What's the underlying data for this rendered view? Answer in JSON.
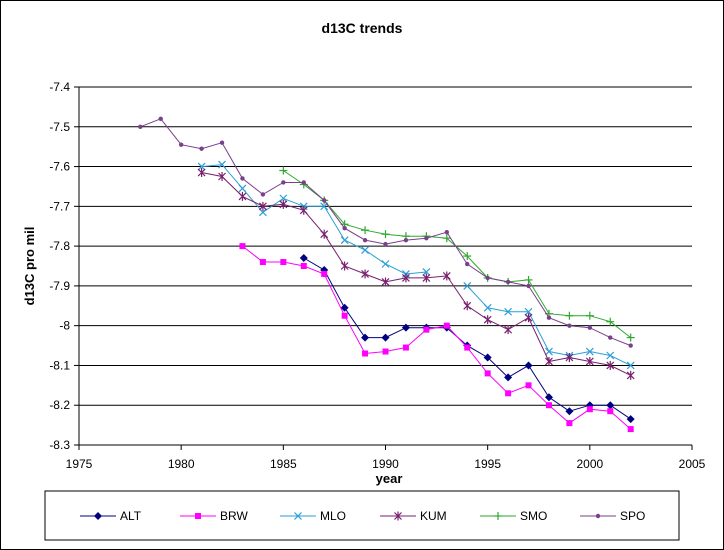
{
  "chart_data": {
    "type": "line",
    "title": "d13C trends",
    "xlabel": "year",
    "ylabel": "d13C pro mil",
    "xlim": [
      1975,
      2005
    ],
    "ylim": [
      -8.3,
      -7.4
    ],
    "x_ticks": [
      1975,
      1980,
      1985,
      1990,
      1995,
      2000,
      2005
    ],
    "y_ticks": [
      -7.4,
      -7.5,
      -7.6,
      -7.7,
      -7.8,
      -7.9,
      -8,
      -8.1,
      -8.2,
      -8.3
    ],
    "y_tick_labels": [
      "-7.4",
      "-7.5",
      "-7.6",
      "-7.7",
      "-7.8",
      "-7.9",
      "-8",
      "-8.1",
      "-8.2",
      "-8.3"
    ],
    "x_tick_labels": [
      "1975",
      "1980",
      "1985",
      "1990",
      "1995",
      "2000",
      "2005"
    ],
    "grid": "horizontal",
    "legend_position": "bottom",
    "series": [
      {
        "name": "ALT",
        "color": "#000080",
        "marker": "diamond",
        "x": [
          1986,
          1987,
          1988,
          1989,
          1990,
          1991,
          1992,
          1993,
          1994,
          1995,
          1996,
          1997,
          1998,
          1999,
          2000,
          2001,
          2002
        ],
        "y": [
          -7.83,
          -7.86,
          -7.955,
          -8.03,
          -8.03,
          -8.005,
          -8.005,
          -8.005,
          -8.05,
          -8.08,
          -8.13,
          -8.1,
          -8.18,
          -8.215,
          -8.2,
          -8.2,
          -8.235
        ]
      },
      {
        "name": "BRW",
        "color": "#ff00ff",
        "marker": "square",
        "x": [
          1983,
          1984,
          1985,
          1986,
          1987,
          1988,
          1989,
          1990,
          1991,
          1992,
          1993,
          1994,
          1995,
          1996,
          1997,
          1998,
          1999,
          2000,
          2001,
          2002
        ],
        "y": [
          -7.8,
          -7.84,
          -7.84,
          -7.85,
          -7.87,
          -7.975,
          -8.07,
          -8.065,
          -8.055,
          -8.01,
          -8.0,
          -8.055,
          -8.12,
          -8.17,
          -8.15,
          -8.2,
          -8.245,
          -8.21,
          -8.215,
          -8.26
        ]
      },
      {
        "name": "MLO",
        "color": "#2a9fd6",
        "marker": "x",
        "x": [
          1981,
          1982,
          1983,
          1984,
          1985,
          1986,
          1987,
          1988,
          1989,
          1990,
          1991,
          1992,
          1993,
          1994,
          1995,
          1996,
          1997,
          1998,
          1999,
          2000,
          2001,
          2002
        ],
        "y": [
          -7.6,
          -7.595,
          -7.655,
          -7.715,
          -7.68,
          -7.7,
          -7.7,
          -7.785,
          -7.81,
          -7.845,
          -7.87,
          -7.865,
          null,
          -7.9,
          -7.955,
          -7.965,
          -7.965,
          -8.065,
          -8.075,
          -8.065,
          -8.075,
          -8.1
        ]
      },
      {
        "name": "KUM",
        "color": "#7a1f6e",
        "marker": "star",
        "x": [
          1981,
          1982,
          1983,
          1984,
          1985,
          1986,
          1987,
          1988,
          1989,
          1990,
          1991,
          1992,
          1993,
          1994,
          1995,
          1996,
          1997,
          1998,
          1999,
          2000,
          2001,
          2002
        ],
        "y": [
          -7.615,
          -7.625,
          -7.675,
          -7.7,
          -7.695,
          -7.71,
          -7.77,
          -7.85,
          -7.87,
          -7.89,
          -7.88,
          -7.88,
          -7.875,
          -7.95,
          -7.985,
          -8.01,
          -7.98,
          -8.09,
          -8.08,
          -8.09,
          -8.1,
          -8.125
        ]
      },
      {
        "name": "SMO",
        "color": "#2ea82e",
        "marker": "plus",
        "x": [
          1985,
          1986,
          1987,
          1988,
          1989,
          1990,
          1991,
          1992,
          1993,
          1994,
          1995,
          1996,
          1997,
          1998,
          1999,
          2000,
          2001,
          2002
        ],
        "y": [
          -7.61,
          -7.645,
          -7.685,
          -7.745,
          -7.76,
          -7.77,
          -7.775,
          -7.775,
          -7.78,
          -7.825,
          -7.88,
          -7.89,
          -7.885,
          -7.97,
          -7.975,
          -7.975,
          -7.99,
          -8.03
        ]
      },
      {
        "name": "SPO",
        "color": "#7b3f8c",
        "marker": "dot",
        "x": [
          1978,
          1979,
          1980,
          1981,
          1982,
          1983,
          1984,
          1985,
          1986,
          1987,
          1988,
          1989,
          1990,
          1991,
          1992,
          1993,
          1994,
          1995,
          1996,
          1997,
          1998,
          1999,
          2000,
          2001,
          2002
        ],
        "y": [
          -7.5,
          -7.48,
          -7.545,
          -7.555,
          -7.54,
          -7.63,
          -7.67,
          -7.64,
          -7.64,
          -7.685,
          -7.755,
          -7.785,
          -7.795,
          -7.785,
          -7.78,
          -7.765,
          -7.845,
          -7.88,
          -7.89,
          -7.9,
          -7.98,
          -8.0,
          -8.005,
          -8.03,
          -8.05
        ]
      }
    ]
  }
}
